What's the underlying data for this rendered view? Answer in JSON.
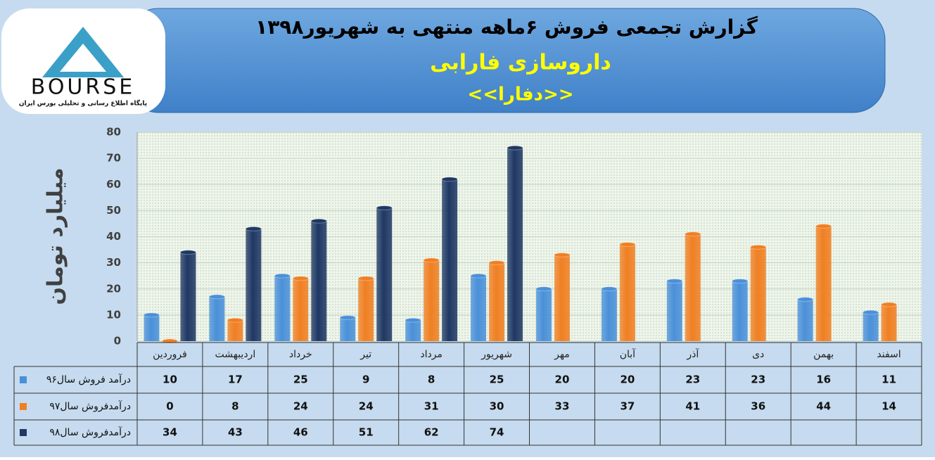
{
  "logo": {
    "text": "BOURSE",
    "tagline": "پایگاه اطلاع رسانی و تحلیلی بورس ایران"
  },
  "chart_data": {
    "type": "bar",
    "title": "گزارش تجمعی فروش ۶ماهه منتهی به شهریور۱۳۹۸",
    "subtitle": "داروسازی فارابی",
    "ticker": "<<دفارا>>",
    "y_label": "میلیارد تومان",
    "categories": [
      "فروردین",
      "اردیبهشت",
      "خرداد",
      "تیر",
      "مرداد",
      "شهریور",
      "مهر",
      "آبان",
      "آذر",
      "دی",
      "بهمن",
      "اسفند"
    ],
    "series": [
      {
        "name": "درآمد فروش سال۹۶",
        "color": "#4a90d9",
        "values": [
          10,
          17,
          25,
          9,
          8,
          25,
          20,
          20,
          23,
          23,
          16,
          11
        ]
      },
      {
        "name": "درآمدفروش سال۹۷",
        "color": "#f07f22",
        "values": [
          0,
          8,
          24,
          24,
          31,
          30,
          33,
          37,
          41,
          36,
          44,
          14
        ]
      },
      {
        "name": "درآمدفروش سال۹۸",
        "color": "#1f3864",
        "values": [
          34,
          43,
          46,
          51,
          62,
          74,
          null,
          null,
          null,
          null,
          null,
          null
        ]
      }
    ],
    "ylim": [
      0,
      80
    ],
    "yticks": [
      0,
      10,
      20,
      30,
      40,
      50,
      60,
      70,
      80
    ],
    "grid": true
  }
}
